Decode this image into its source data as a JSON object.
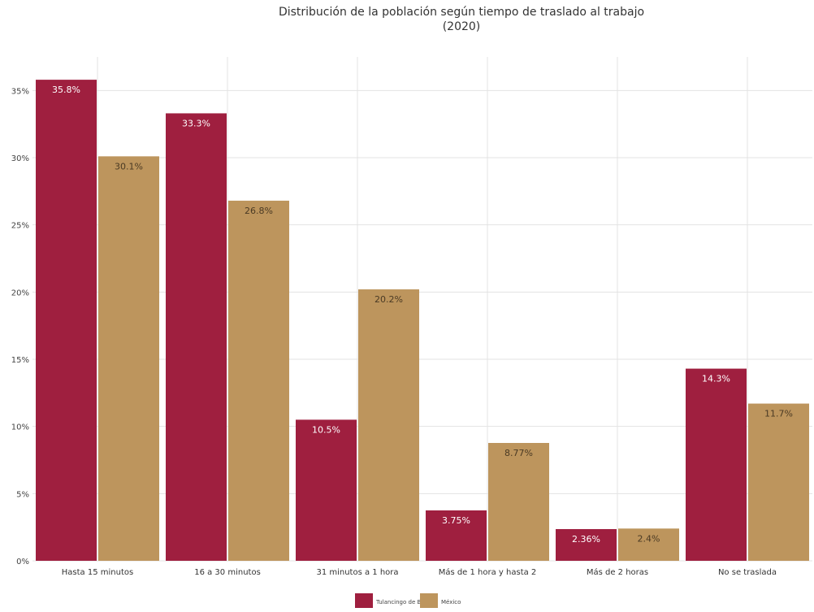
{
  "chart_data": {
    "type": "bar",
    "title": "Distribución de la población según tiempo de traslado al trabajo",
    "subtitle": "(2020)",
    "categories": [
      "Hasta 15 minutos",
      "16 a 30 minutos",
      "31 minutos a 1 hora",
      "Más de 1 hora y hasta 2",
      "Más de 2 horas",
      "No se traslada"
    ],
    "series": [
      {
        "name": "Tulancingo de Bravo",
        "color": "#9f1f3f",
        "values": [
          35.8,
          33.3,
          10.5,
          3.75,
          2.36,
          14.3
        ],
        "labels": [
          "35.8%",
          "33.3%",
          "10.5%",
          "3.75%",
          "2.36%",
          "14.3%"
        ]
      },
      {
        "name": "México",
        "color": "#bd955d",
        "values": [
          30.1,
          26.8,
          20.2,
          8.77,
          2.4,
          11.7
        ],
        "labels": [
          "30.1%",
          "26.8%",
          "20.2%",
          "8.77%",
          "2.4%",
          "11.7%"
        ]
      }
    ],
    "ylim": [
      0,
      37.5
    ],
    "yticks": [
      0,
      5,
      10,
      15,
      20,
      25,
      30,
      35
    ],
    "ytick_labels": [
      "0%",
      "5%",
      "10%",
      "15%",
      "20%",
      "25%",
      "30%",
      "35%"
    ],
    "grid": true,
    "legend_position": "bottom-center",
    "xlabel": "",
    "ylabel": ""
  }
}
